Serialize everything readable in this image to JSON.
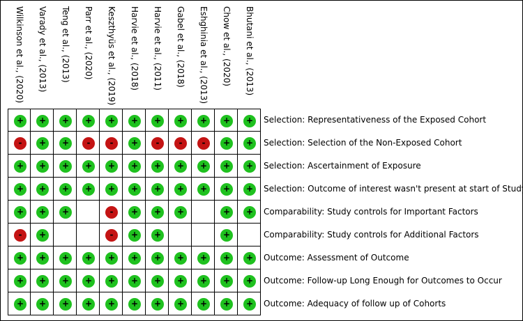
{
  "chart_data": {
    "type": "table",
    "studies": [
      "Wilkinson et al., (2020)",
      "Varady et al., (2013)",
      "Teng et al., (2013)",
      "Parr et al., (2020)",
      "Keszthyüs et al., (2019)",
      "Harvie et al., (2018)",
      "Harvie et al., (2011)",
      "Gabel et al., (2018)",
      "Eshghinia et al., (2013)",
      "Chow et al., (2020)",
      "Bhutani et al., (2013)"
    ],
    "domains": [
      "Selection: Representativeness of the Exposed Cohort",
      "Selection: Selection of the Non-Exposed Cohort",
      "Selection: Ascertainment of Exposure",
      "Selection: Outcome of interest wasn't present at start of Study",
      "Comparability: Study controls for Important Factors",
      "Comparability: Study controls for Additional Factors",
      "Outcome: Assessment of Outcome",
      "Outcome: Follow-up Long Enough for Outcomes to Occur",
      "Outcome: Adequacy of follow up of Cohorts"
    ],
    "legend_symbols": {
      "low": "+",
      "high": "-"
    },
    "colors": {
      "low": "#1fc11f",
      "high": "#c41414"
    },
    "ratings": [
      [
        "low",
        "low",
        "low",
        "low",
        "low",
        "low",
        "low",
        "low",
        "low",
        "low",
        "low"
      ],
      [
        "high",
        "low",
        "low",
        "high",
        "high",
        "low",
        "high",
        "high",
        "high",
        "low",
        "low"
      ],
      [
        "low",
        "low",
        "low",
        "low",
        "low",
        "low",
        "low",
        "low",
        "low",
        "low",
        "low"
      ],
      [
        "low",
        "low",
        "low",
        "low",
        "low",
        "low",
        "low",
        "low",
        "low",
        "low",
        "low"
      ],
      [
        "low",
        "low",
        "low",
        null,
        "high",
        "low",
        "low",
        "low",
        null,
        "low",
        "low"
      ],
      [
        "high",
        "low",
        null,
        null,
        "high",
        "low",
        "low",
        null,
        null,
        "low",
        null
      ],
      [
        "low",
        "low",
        "low",
        "low",
        "low",
        "low",
        "low",
        "low",
        "low",
        "low",
        "low"
      ],
      [
        "low",
        "low",
        "low",
        "low",
        "low",
        "low",
        "low",
        "low",
        "low",
        "low",
        "low"
      ],
      [
        "low",
        "low",
        "low",
        "low",
        "low",
        "low",
        "low",
        "low",
        "low",
        "low",
        "low"
      ]
    ]
  }
}
